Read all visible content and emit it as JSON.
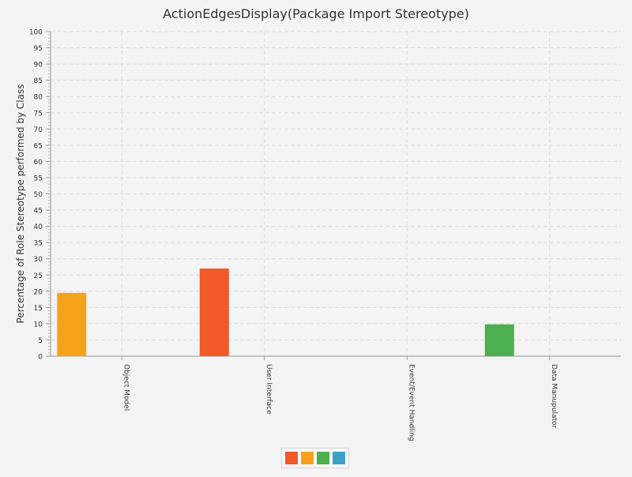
{
  "chart_data": {
    "type": "bar",
    "title": "ActionEdgesDisplay(Package Import Stereotype)",
    "xlabel": "",
    "ylabel": "Percentage of Role Stereotype performed by Class",
    "ylim": [
      0,
      100
    ],
    "yticks": [
      "0",
      "5",
      "10",
      "15",
      "20",
      "25",
      "30",
      "35",
      "40",
      "45",
      "50",
      "55",
      "60",
      "65",
      "70",
      "75",
      "80",
      "85",
      "90",
      "95",
      "100"
    ],
    "grid": true,
    "legend_position": "bottom",
    "categories": [
      "Object Model",
      "User Interface",
      "Event/Event Handling",
      "Data Manupulator"
    ],
    "series": [
      {
        "color": "#f05a28",
        "values": [
          0,
          27,
          0,
          0
        ]
      },
      {
        "color": "#f7a21b",
        "values": [
          19.5,
          0,
          0,
          0
        ]
      },
      {
        "color": "#4caf50",
        "values": [
          0,
          0,
          0,
          9.8
        ],
        "_unused": false
      },
      {
        "color": "#3ba1c3",
        "values": [
          0,
          0,
          0,
          0
        ]
      }
    ]
  }
}
